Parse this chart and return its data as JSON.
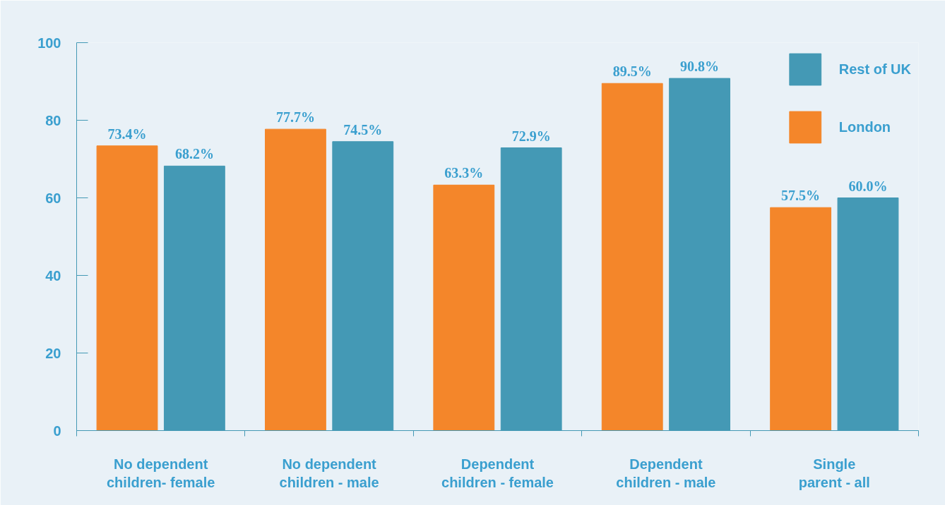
{
  "chart_data": {
    "type": "bar",
    "categories": [
      "No dependent\nchildren- female",
      "No dependent\nchildren - male",
      "Dependent\nchildren - female",
      "Dependent\nchildren - male",
      "Single\nparent - all"
    ],
    "series": [
      {
        "name": "London",
        "color": "#f4862a",
        "values": [
          73.4,
          77.7,
          63.3,
          89.5,
          57.5
        ],
        "value_labels": [
          "73.4%",
          "77.7%",
          "63.3%",
          "89.5%",
          "57.5%"
        ]
      },
      {
        "name": "Rest of UK",
        "color": "#4499b5",
        "values": [
          68.2,
          74.5,
          72.9,
          90.8,
          60.0
        ],
        "value_labels": [
          "68.2%",
          "74.5%",
          "72.9%",
          "90.8%",
          "60.0%"
        ]
      }
    ],
    "ylim": [
      0,
      100
    ],
    "yticks": [
      0,
      20,
      40,
      60,
      80,
      100
    ],
    "grid": false,
    "legend": "top right"
  }
}
